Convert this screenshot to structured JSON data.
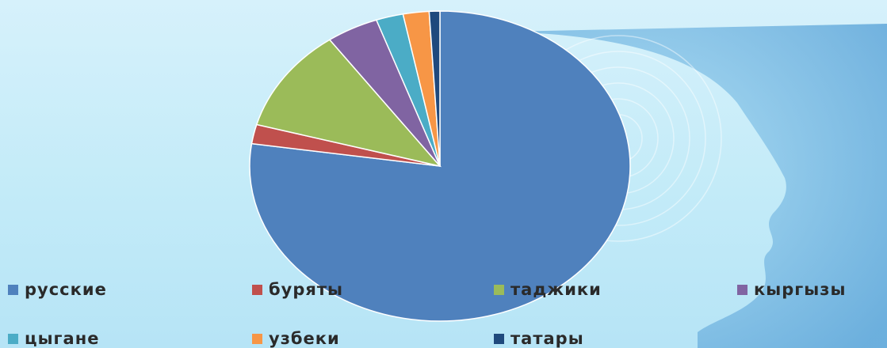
{
  "chart_data": {
    "type": "pie",
    "title": "",
    "start_angle_deg": 0,
    "direction": "clockwise",
    "legend_position": "bottom",
    "slices": [
      {
        "label": "русские",
        "value": 77.0,
        "color": "#4f81bd"
      },
      {
        "label": "буряты",
        "value": 2.0,
        "color": "#c0504d"
      },
      {
        "label": "таджики",
        "value": 10.8,
        "color": "#9bbb59"
      },
      {
        "label": "кыргызы",
        "value": 4.4,
        "color": "#8064a2"
      },
      {
        "label": "цыгане",
        "value": 2.3,
        "color": "#4bacc6"
      },
      {
        "label": "узбеки",
        "value": 2.2,
        "color": "#f79646"
      },
      {
        "label": "татары",
        "value": 0.9,
        "color": "#1f497d"
      }
    ]
  }
}
